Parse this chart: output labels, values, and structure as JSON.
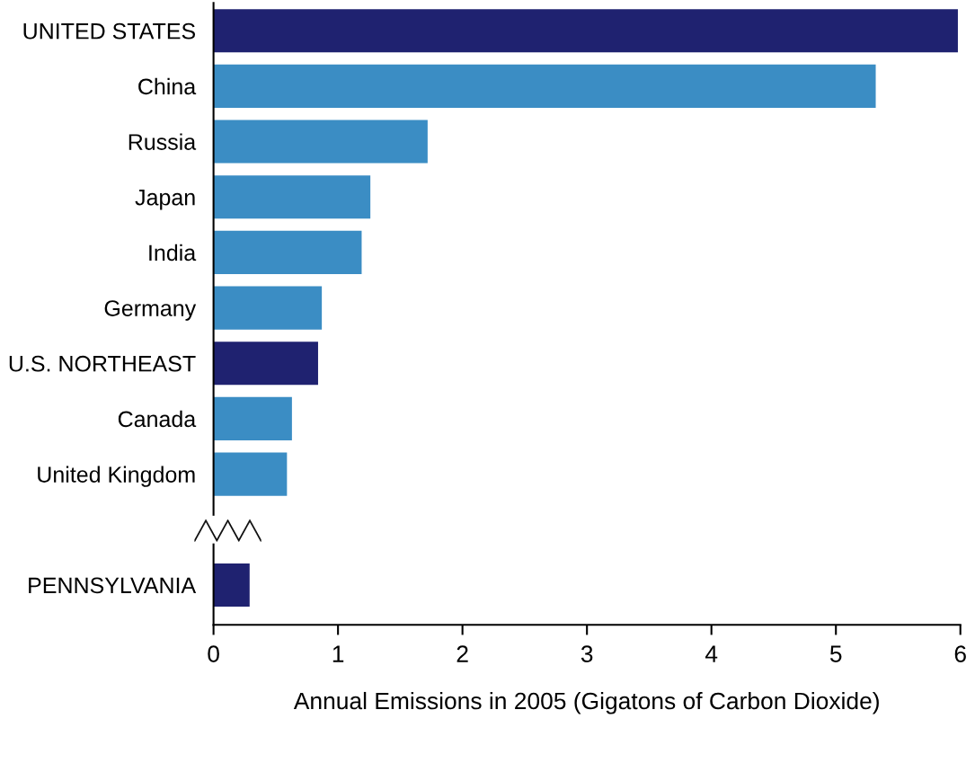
{
  "chart_data": {
    "type": "bar",
    "orientation": "horizontal",
    "xlabel": "Annual Emissions in 2005 (Gigatons of Carbon Dioxide)",
    "categories": [
      "UNITED STATES",
      "China",
      "Russia",
      "Japan",
      "India",
      "Germany",
      "U.S. NORTHEAST",
      "Canada",
      "United Kingdom",
      null,
      "PENNSYLVANIA"
    ],
    "values": [
      5.98,
      5.32,
      1.72,
      1.26,
      1.19,
      0.87,
      0.84,
      0.63,
      0.59,
      null,
      0.29
    ],
    "colors": [
      "#1f2270",
      "#3b8dc4",
      "#3b8dc4",
      "#3b8dc4",
      "#3b8dc4",
      "#3b8dc4",
      "#1f2270",
      "#3b8dc4",
      "#3b8dc4",
      "#3b8dc4",
      "#1f2270"
    ],
    "xlim": [
      0,
      6
    ],
    "xticks": [
      0,
      1,
      2,
      3,
      4,
      5,
      6
    ],
    "grid": false
  }
}
